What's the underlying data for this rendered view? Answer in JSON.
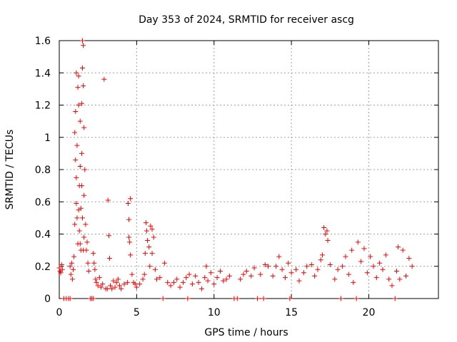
{
  "chart_data": {
    "type": "scatter",
    "title": "Day 353 of 2024, SRMTID for receiver ascg",
    "xlabel": "GPS time / hours",
    "ylabel": "SRMTID / TECUs",
    "xlim": [
      0,
      24.5
    ],
    "ylim": [
      0,
      1.6
    ],
    "xticks": [
      0,
      5,
      10,
      15,
      20
    ],
    "xtick_labels": [
      "0",
      "5",
      "10",
      "15",
      "20"
    ],
    "yticks": [
      0,
      0.2,
      0.4,
      0.6,
      0.8,
      1.0,
      1.2,
      1.4,
      1.6
    ],
    "ytick_labels": [
      "0",
      "0.2",
      "0.4",
      "0.6",
      "0.8",
      "1",
      "1.2",
      "1.4",
      "1.6"
    ],
    "grid": true,
    "marker": "+",
    "color": "#ff0000",
    "series": [
      {
        "name": "SRMTID",
        "points": [
          [
            0.0,
            0.19
          ],
          [
            0.05,
            0.17
          ],
          [
            0.1,
            0.16
          ],
          [
            0.15,
            0.21
          ],
          [
            0.2,
            0.18
          ],
          [
            0.3,
            0.0
          ],
          [
            0.45,
            0.0
          ],
          [
            0.6,
            0.0
          ],
          [
            0.7,
            0.0
          ],
          [
            0.7,
            0.2
          ],
          [
            0.75,
            0.15
          ],
          [
            0.8,
            0.22
          ],
          [
            0.85,
            0.12
          ],
          [
            0.9,
            0.18
          ],
          [
            0.95,
            0.26
          ],
          [
            1.0,
            0.46
          ],
          [
            1.0,
            1.03
          ],
          [
            1.05,
            0.86
          ],
          [
            1.05,
            1.16
          ],
          [
            1.1,
            0.59
          ],
          [
            1.1,
            0.75
          ],
          [
            1.1,
            1.4
          ],
          [
            1.15,
            0.5
          ],
          [
            1.15,
            0.95
          ],
          [
            1.2,
            1.31
          ],
          [
            1.2,
            0.34
          ],
          [
            1.25,
            0.55
          ],
          [
            1.25,
            1.2
          ],
          [
            1.25,
            1.38
          ],
          [
            1.3,
            0.7
          ],
          [
            1.3,
            0.42
          ],
          [
            1.35,
            0.82
          ],
          [
            1.35,
            1.1
          ],
          [
            1.35,
            0.34
          ],
          [
            1.4,
            0.56
          ],
          [
            1.4,
            0.3
          ],
          [
            1.45,
            0.7
          ],
          [
            1.45,
            1.21
          ],
          [
            1.45,
            0.9
          ],
          [
            1.5,
            1.6
          ],
          [
            1.5,
            1.43
          ],
          [
            1.5,
            0.5
          ],
          [
            1.55,
            1.57
          ],
          [
            1.55,
            1.32
          ],
          [
            1.55,
            0.3
          ],
          [
            1.6,
            1.06
          ],
          [
            1.6,
            0.64
          ],
          [
            1.6,
            0.38
          ],
          [
            1.65,
            0.8
          ],
          [
            1.7,
            0.46
          ],
          [
            1.75,
            0.3
          ],
          [
            1.8,
            0.35
          ],
          [
            1.85,
            0.22
          ],
          [
            1.9,
            0.17
          ],
          [
            2.0,
            0.0
          ],
          [
            2.1,
            0.0
          ],
          [
            2.2,
            0.0
          ],
          [
            2.2,
            0.28
          ],
          [
            2.25,
            0.22
          ],
          [
            2.3,
            0.18
          ],
          [
            2.35,
            0.12
          ],
          [
            2.4,
            0.1
          ],
          [
            2.5,
            0.08
          ],
          [
            2.6,
            0.13
          ],
          [
            2.7,
            0.07
          ],
          [
            2.8,
            0.09
          ],
          [
            2.9,
            1.36
          ],
          [
            3.0,
            0.06
          ],
          [
            3.1,
            0.06
          ],
          [
            3.15,
            0.61
          ],
          [
            3.2,
            0.39
          ],
          [
            3.25,
            0.25
          ],
          [
            3.3,
            0.08
          ],
          [
            3.4,
            0.06
          ],
          [
            3.5,
            0.11
          ],
          [
            3.6,
            0.07
          ],
          [
            3.7,
            0.1
          ],
          [
            3.8,
            0.12
          ],
          [
            3.9,
            0.08
          ],
          [
            4.0,
            0.06
          ],
          [
            4.2,
            0.09
          ],
          [
            4.4,
            0.1
          ],
          [
            4.45,
            0.59
          ],
          [
            4.5,
            0.49
          ],
          [
            4.5,
            0.38
          ],
          [
            4.55,
            0.35
          ],
          [
            4.6,
            0.62
          ],
          [
            4.6,
            0.27
          ],
          [
            4.7,
            0.15
          ],
          [
            4.8,
            0.1
          ],
          [
            4.9,
            0.09
          ],
          [
            5.0,
            0.07
          ],
          [
            5.2,
            0.09
          ],
          [
            5.4,
            0.12
          ],
          [
            5.5,
            0.15
          ],
          [
            5.55,
            0.28
          ],
          [
            5.6,
            0.47
          ],
          [
            5.65,
            0.42
          ],
          [
            5.7,
            0.36
          ],
          [
            5.8,
            0.32
          ],
          [
            5.85,
            0.2
          ],
          [
            5.9,
            0.45
          ],
          [
            6.0,
            0.43
          ],
          [
            6.0,
            0.28
          ],
          [
            6.1,
            0.38
          ],
          [
            6.2,
            0.18
          ],
          [
            6.3,
            0.12
          ],
          [
            6.5,
            0.13
          ],
          [
            6.7,
            0.0
          ],
          [
            6.8,
            0.22
          ],
          [
            7.0,
            0.1
          ],
          [
            7.2,
            0.08
          ],
          [
            7.4,
            0.1
          ],
          [
            7.6,
            0.12
          ],
          [
            7.8,
            0.07
          ],
          [
            8.0,
            0.1
          ],
          [
            8.2,
            0.13
          ],
          [
            8.3,
            0.0
          ],
          [
            8.4,
            0.15
          ],
          [
            8.6,
            0.09
          ],
          [
            8.8,
            0.14
          ],
          [
            9.0,
            0.1
          ],
          [
            9.2,
            0.06
          ],
          [
            9.4,
            0.13
          ],
          [
            9.5,
            0.2
          ],
          [
            9.6,
            0.11
          ],
          [
            9.8,
            0.16
          ],
          [
            10.0,
            0.09
          ],
          [
            10.2,
            0.13
          ],
          [
            10.4,
            0.17
          ],
          [
            10.6,
            0.11
          ],
          [
            10.8,
            0.12
          ],
          [
            11.0,
            0.14
          ],
          [
            11.3,
            0.0
          ],
          [
            11.5,
            0.0
          ],
          [
            11.7,
            0.12
          ],
          [
            11.9,
            0.15
          ],
          [
            12.1,
            0.17
          ],
          [
            12.4,
            0.14
          ],
          [
            12.6,
            0.19
          ],
          [
            12.8,
            0.0
          ],
          [
            13.0,
            0.15
          ],
          [
            13.2,
            0.0
          ],
          [
            13.3,
            0.21
          ],
          [
            13.5,
            0.2
          ],
          [
            13.8,
            0.14
          ],
          [
            14.0,
            0.2
          ],
          [
            14.2,
            0.26
          ],
          [
            14.4,
            0.18
          ],
          [
            14.6,
            0.13
          ],
          [
            14.8,
            0.22
          ],
          [
            14.9,
            0.0
          ],
          [
            15.0,
            0.16
          ],
          [
            15.3,
            0.18
          ],
          [
            15.5,
            0.11
          ],
          [
            15.8,
            0.16
          ],
          [
            16.0,
            0.2
          ],
          [
            16.3,
            0.21
          ],
          [
            16.5,
            0.14
          ],
          [
            16.7,
            0.18
          ],
          [
            16.9,
            0.24
          ],
          [
            17.0,
            0.27
          ],
          [
            17.1,
            0.44
          ],
          [
            17.2,
            0.4
          ],
          [
            17.3,
            0.42
          ],
          [
            17.35,
            0.36
          ],
          [
            17.5,
            0.21
          ],
          [
            17.8,
            0.12
          ],
          [
            18.0,
            0.18
          ],
          [
            18.2,
            0.0
          ],
          [
            18.3,
            0.2
          ],
          [
            18.5,
            0.26
          ],
          [
            18.7,
            0.15
          ],
          [
            18.9,
            0.3
          ],
          [
            19.0,
            0.1
          ],
          [
            19.2,
            0.0
          ],
          [
            19.3,
            0.35
          ],
          [
            19.5,
            0.23
          ],
          [
            19.7,
            0.31
          ],
          [
            19.9,
            0.16
          ],
          [
            20.1,
            0.26
          ],
          [
            20.3,
            0.2
          ],
          [
            20.5,
            0.13
          ],
          [
            20.7,
            0.22
          ],
          [
            20.9,
            0.18
          ],
          [
            21.1,
            0.27
          ],
          [
            21.3,
            0.12
          ],
          [
            21.5,
            0.08
          ],
          [
            21.7,
            0.0
          ],
          [
            21.8,
            0.17
          ],
          [
            21.9,
            0.32
          ],
          [
            22.0,
            0.12
          ],
          [
            22.2,
            0.3
          ],
          [
            22.4,
            0.14
          ],
          [
            22.6,
            0.25
          ],
          [
            22.8,
            0.2
          ]
        ]
      }
    ]
  }
}
